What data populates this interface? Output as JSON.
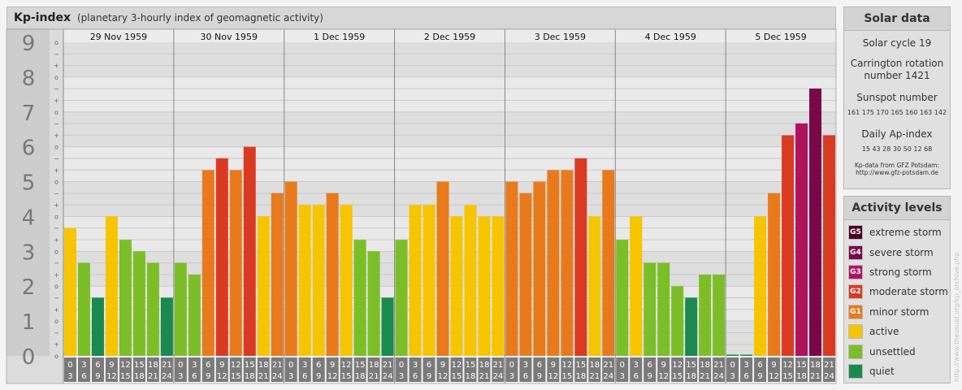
{
  "header": {
    "title": "Kp-index",
    "subtitle": "(planetary 3-hourly index of geomagnetic activity)"
  },
  "chart_data": {
    "type": "bar",
    "title": "Kp-index",
    "subtitle": "(planetary 3-hourly index of geomagnetic activity)",
    "ylim": [
      0,
      9
    ],
    "y_major_labels": [
      "0",
      "1",
      "2",
      "3",
      "4",
      "5",
      "6",
      "7",
      "8",
      "9"
    ],
    "y_minor_labels": [
      "o",
      "+",
      "−"
    ],
    "days": [
      "29 Nov 1959",
      "30 Nov 1959",
      "1 Dec 1959",
      "2 Dec 1959",
      "3 Dec 1959",
      "4 Dec 1959",
      "5 Dec 1959"
    ],
    "interval_top": [
      "0",
      "3",
      "6",
      "9",
      "12",
      "15",
      "18",
      "21"
    ],
    "interval_bottom": [
      "3",
      "6",
      "9",
      "12",
      "15",
      "18",
      "21",
      "24"
    ],
    "values": [
      [
        3.67,
        2.67,
        1.67,
        4.0,
        3.33,
        3.0,
        2.67,
        1.67
      ],
      [
        2.67,
        2.33,
        5.33,
        5.67,
        5.33,
        6.0,
        4.0,
        4.67
      ],
      [
        5.0,
        4.33,
        4.33,
        4.67,
        4.33,
        3.33,
        3.0,
        1.67
      ],
      [
        3.33,
        4.33,
        4.33,
        5.0,
        4.0,
        4.33,
        4.0,
        4.0
      ],
      [
        5.0,
        4.67,
        5.0,
        5.33,
        5.33,
        5.67,
        4.0,
        5.33
      ],
      [
        3.33,
        4.0,
        2.67,
        2.67,
        2.0,
        1.67,
        2.33,
        2.33
      ],
      [
        0.0,
        0.0,
        4.0,
        4.67,
        6.33,
        6.67,
        7.67,
        6.33
      ]
    ]
  },
  "levels": [
    {
      "min": 0,
      "max": 2,
      "name": "quiet",
      "color": "#1a8a4f",
      "badge": ""
    },
    {
      "min": 2,
      "max": 3.5,
      "name": "unsettled",
      "color": "#7cbe27",
      "badge": ""
    },
    {
      "min": 3.5,
      "max": 4.5,
      "name": "active",
      "color": "#f7c400",
      "badge": ""
    },
    {
      "min": 4.5,
      "max": 5.5,
      "name": "minor storm",
      "color": "#e87a1c",
      "badge": "G1"
    },
    {
      "min": 5.5,
      "max": 6.5,
      "name": "moderate storm",
      "color": "#db3a22",
      "badge": "G2"
    },
    {
      "min": 6.5,
      "max": 7.5,
      "name": "strong storm",
      "color": "#b0125e",
      "badge": "G3"
    },
    {
      "min": 7.5,
      "max": 8.5,
      "name": "severe storm",
      "color": "#7a0848",
      "badge": "G4"
    },
    {
      "min": 8.5,
      "max": 9.01,
      "name": "extreme storm",
      "color": "#4a0426",
      "badge": "G5"
    }
  ],
  "solar_panel": {
    "title": "Solar data",
    "solar_cycle": "Solar cycle 19",
    "carrington_line1": "Carrington rotation",
    "carrington_line2": "number 1421",
    "sunspot_title": "Sunspot number",
    "sunspot_values": "161  175  170  165  160  163  142",
    "ap_title": "Daily Ap-index",
    "ap_values": "15   43   28   30   50   12   68",
    "source_line1": "Kp-data from  GFZ Potsdam:",
    "source_line2": "http://www.gfz-potsdam.de"
  },
  "activity_panel": {
    "title": "Activity levels",
    "items": [
      {
        "badge": "G5",
        "label": "extreme storm",
        "color": "#4a0426"
      },
      {
        "badge": "G4",
        "label": "severe storm",
        "color": "#7a0848"
      },
      {
        "badge": "G3",
        "label": "strong storm",
        "color": "#b0125e"
      },
      {
        "badge": "G2",
        "label": "moderate storm",
        "color": "#db3a22"
      },
      {
        "badge": "G1",
        "label": "minor storm",
        "color": "#e87a1c"
      },
      {
        "badge": "",
        "label": "active",
        "color": "#f7c400"
      },
      {
        "badge": "",
        "label": "unsettled",
        "color": "#7cbe27"
      },
      {
        "badge": "",
        "label": "quiet",
        "color": "#1a8a4f"
      }
    ]
  },
  "credit": "http://www.theusual.org/kp_archive.php"
}
